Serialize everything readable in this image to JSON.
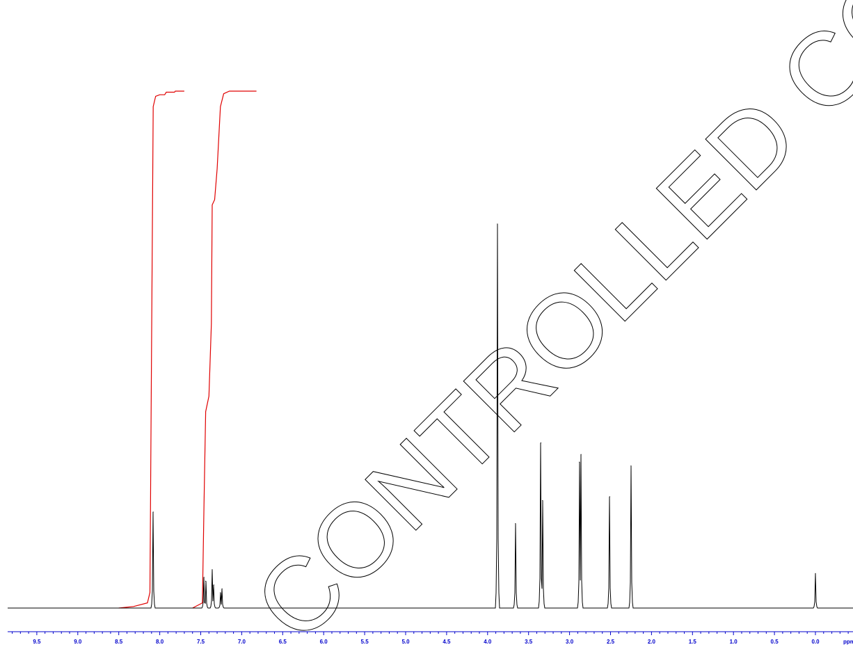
{
  "chart_data": {
    "type": "line",
    "xlabel": "ppm",
    "x_range": [
      10.0,
      -0.2
    ],
    "x_reversed": true,
    "x_ticks": [
      9.5,
      9.0,
      8.5,
      8.0,
      7.5,
      7.0,
      6.5,
      6.0,
      5.5,
      5.0,
      4.5,
      4.0,
      3.5,
      3.0,
      2.5,
      2.0,
      1.5,
      1.0,
      0.5,
      0.0
    ],
    "x_tick_labels": [
      "9.5",
      "9.0",
      "8.5",
      "8.0",
      "7.5",
      "7.0",
      "6.5",
      "6.0",
      "5.5",
      "5.0",
      "4.5",
      "4.0",
      "3.5",
      "3.0",
      "2.5",
      "2.0",
      "1.5",
      "1.0",
      "0.5",
      "0.0"
    ],
    "y_range": [
      0,
      100
    ],
    "y_axis_shown": false,
    "grid": false,
    "series": [
      {
        "kind": "spectrum",
        "peaks": [
          {
            "ppm": 8.08,
            "height": 25
          },
          {
            "ppm": 7.46,
            "height": 8
          },
          {
            "ppm": 7.44,
            "height": 7
          },
          {
            "ppm": 7.36,
            "height": 10
          },
          {
            "ppm": 7.34,
            "height": 6
          },
          {
            "ppm": 7.26,
            "height": 4
          },
          {
            "ppm": 7.24,
            "height": 5
          },
          {
            "ppm": 3.88,
            "height": 100
          },
          {
            "ppm": 3.66,
            "height": 22
          },
          {
            "ppm": 3.35,
            "height": 43
          },
          {
            "ppm": 3.33,
            "height": 28
          },
          {
            "ppm": 2.88,
            "height": 38
          },
          {
            "ppm": 2.86,
            "height": 40
          },
          {
            "ppm": 2.51,
            "height": 29
          },
          {
            "ppm": 2.25,
            "height": 37
          },
          {
            "ppm": 0.0,
            "height": 9
          }
        ]
      },
      {
        "kind": "integral",
        "color": "#e00000",
        "segments": [
          {
            "points": [
              [
                8.5,
                0
              ],
              [
                8.32,
                0.3
              ],
              [
                8.15,
                1
              ],
              [
                8.12,
                3
              ],
              [
                8.1,
                50
              ],
              [
                8.08,
                97
              ],
              [
                8.05,
                99
              ],
              [
                8.0,
                99.3
              ],
              [
                7.94,
                99.3
              ],
              [
                7.92,
                99.8
              ],
              [
                7.82,
                99.8
              ],
              [
                7.81,
                100
              ],
              [
                7.7,
                100
              ]
            ]
          },
          {
            "points": [
              [
                7.6,
                0
              ],
              [
                7.48,
                1
              ],
              [
                7.46,
                20
              ],
              [
                7.44,
                38
              ],
              [
                7.4,
                41
              ],
              [
                7.37,
                55
              ],
              [
                7.36,
                78
              ],
              [
                7.33,
                79
              ],
              [
                7.3,
                85
              ],
              [
                7.26,
                97
              ],
              [
                7.22,
                99.5
              ],
              [
                7.15,
                100
              ],
              [
                6.82,
                100
              ]
            ]
          }
        ]
      }
    ]
  },
  "watermark": {
    "text": "CONTROLLED COPY",
    "outline_color": "#000000"
  },
  "colors": {
    "spectrum": "#000000",
    "axis": "#0000cc",
    "integral": "#e00000"
  }
}
